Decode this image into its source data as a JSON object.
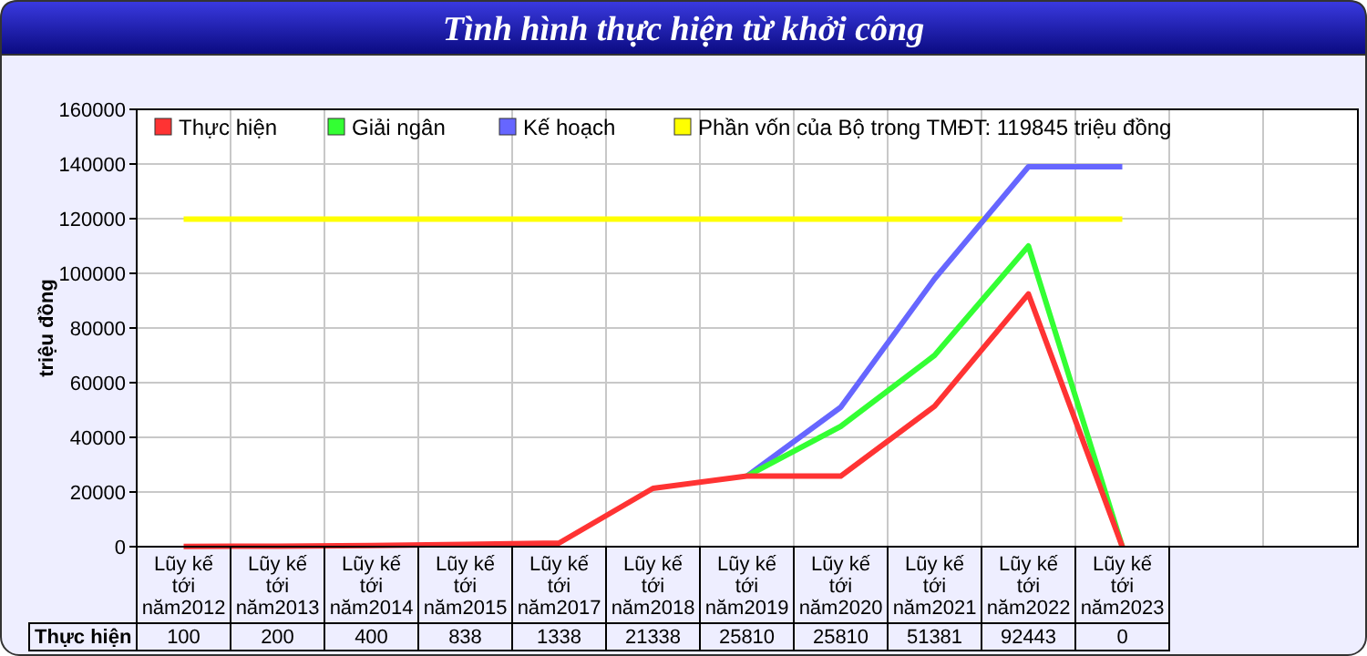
{
  "chart_data": {
    "type": "line",
    "title": "Tình hình thực hiện từ khởi công",
    "ylabel": "triệu đồng",
    "categories": [
      "Lũy kế tới năm2012",
      "Lũy kế tới năm2013",
      "Lũy kế tới năm2014",
      "Lũy kế tới năm2015",
      "Lũy kế tới năm2017",
      "Lũy kế tới năm2018",
      "Lũy kế tới năm2019",
      "Lũy kế tới năm2020",
      "Lũy kế tới năm2021",
      "Lũy kế tới năm2022",
      "Lũy kế tới năm2023"
    ],
    "series": [
      {
        "name": "Thực hiện",
        "color": "#ff3333",
        "values": [
          100,
          200,
          400,
          838,
          1338,
          21338,
          25810,
          25810,
          51381,
          92443,
          0
        ],
        "value_labels": [
          "100",
          "200",
          "400",
          "838",
          "1338",
          "21338",
          "25810",
          "25810",
          "51381",
          "92443",
          "0"
        ]
      },
      {
        "name": "Giải ngân",
        "color": "#33ff33",
        "values": [
          null,
          null,
          null,
          null,
          null,
          null,
          25810,
          44000,
          70000,
          110000,
          0
        ]
      },
      {
        "name": "Kế hoạch",
        "color": "#6666ff",
        "values": [
          null,
          null,
          null,
          null,
          null,
          null,
          25810,
          51000,
          98000,
          139000,
          139000
        ]
      }
    ],
    "ref_lines": [
      {
        "axis": "y",
        "value": 119845,
        "label": "Phần vốn của Bộ trong TMĐT: 119845 triệu đồng",
        "color": "#ffff00"
      }
    ],
    "ylim": [
      0,
      160000
    ],
    "yticks": [
      0,
      20000,
      40000,
      60000,
      80000,
      100000,
      120000,
      140000,
      160000
    ],
    "grid": true,
    "legend": "top left"
  }
}
